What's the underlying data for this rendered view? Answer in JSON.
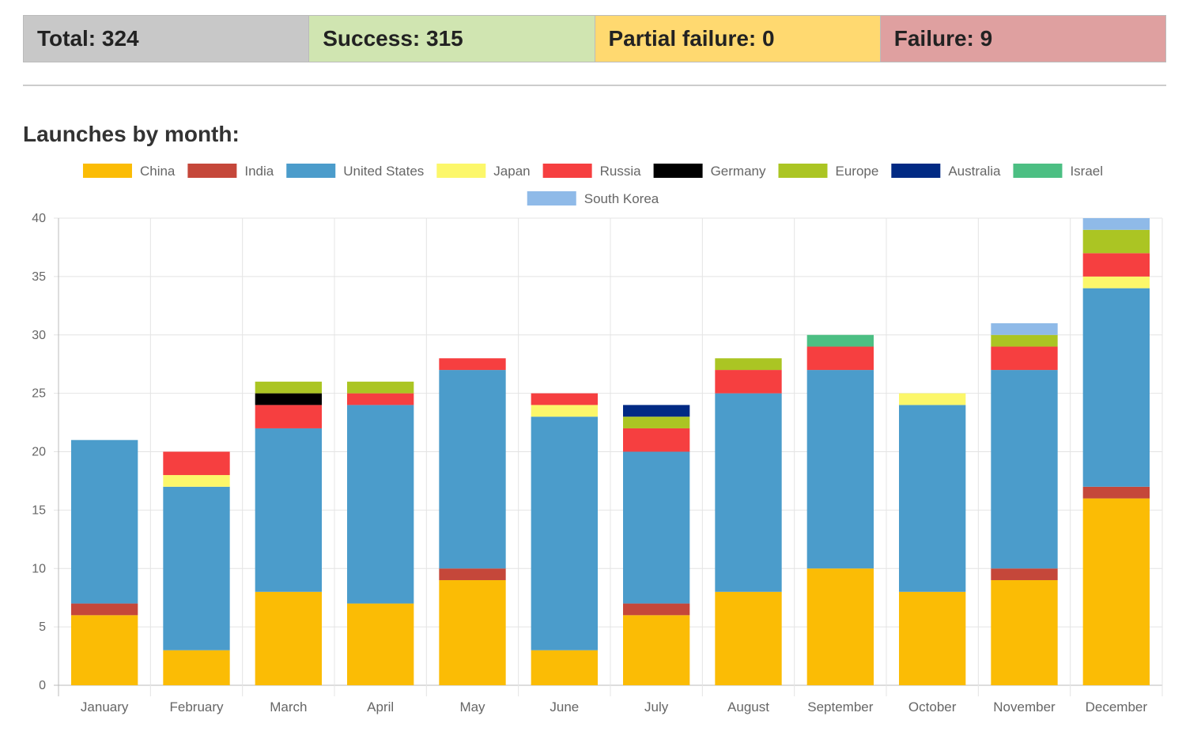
{
  "stats": {
    "total": "Total: 324",
    "success": "Success: 315",
    "partial": "Partial failure: 0",
    "failure": "Failure: 9",
    "colors": {
      "total": "#c8c8c8",
      "success": "#d0e5b1",
      "partial": "#ffd970",
      "failure": "#dfa0a0"
    }
  },
  "section_title": "Launches by month:",
  "chart_data": {
    "type": "bar",
    "stacked": true,
    "legend": "top",
    "grid": true,
    "ylim": [
      0,
      40
    ],
    "yticks": [
      "0",
      "5",
      "10",
      "15",
      "20",
      "25",
      "30",
      "35",
      "40"
    ],
    "categories": [
      "January",
      "February",
      "March",
      "April",
      "May",
      "June",
      "July",
      "August",
      "September",
      "October",
      "November",
      "December"
    ],
    "series": [
      {
        "name": "China",
        "color": "#fbbc05",
        "values": [
          6,
          3,
          8,
          7,
          9,
          3,
          6,
          8,
          10,
          8,
          9,
          16
        ]
      },
      {
        "name": "India",
        "color": "#c5473a",
        "values": [
          1,
          0,
          0,
          0,
          1,
          0,
          1,
          0,
          0,
          0,
          1,
          1
        ]
      },
      {
        "name": "United States",
        "color": "#4b9ccb",
        "values": [
          14,
          14,
          14,
          17,
          17,
          20,
          13,
          17,
          17,
          16,
          17,
          17
        ]
      },
      {
        "name": "Japan",
        "color": "#fcf76a",
        "values": [
          0,
          1,
          0,
          0,
          0,
          1,
          0,
          0,
          0,
          1,
          0,
          1
        ]
      },
      {
        "name": "Russia",
        "color": "#f63f40",
        "values": [
          0,
          2,
          2,
          1,
          1,
          1,
          2,
          2,
          2,
          0,
          2,
          2
        ]
      },
      {
        "name": "Germany",
        "color": "#000000",
        "values": [
          0,
          0,
          1,
          0,
          0,
          0,
          0,
          0,
          0,
          0,
          0,
          0
        ]
      },
      {
        "name": "Europe",
        "color": "#abc523",
        "values": [
          0,
          0,
          1,
          1,
          0,
          0,
          1,
          1,
          0,
          0,
          1,
          2
        ]
      },
      {
        "name": "Australia",
        "color": "#012a84",
        "values": [
          0,
          0,
          0,
          0,
          0,
          0,
          1,
          0,
          0,
          0,
          0,
          0
        ]
      },
      {
        "name": "Israel",
        "color": "#4cbf83",
        "values": [
          0,
          0,
          0,
          0,
          0,
          0,
          0,
          0,
          1,
          0,
          0,
          0
        ]
      },
      {
        "name": "South Korea",
        "color": "#8fbae8",
        "values": [
          0,
          0,
          0,
          0,
          0,
          0,
          0,
          0,
          0,
          0,
          1,
          1
        ]
      }
    ]
  }
}
